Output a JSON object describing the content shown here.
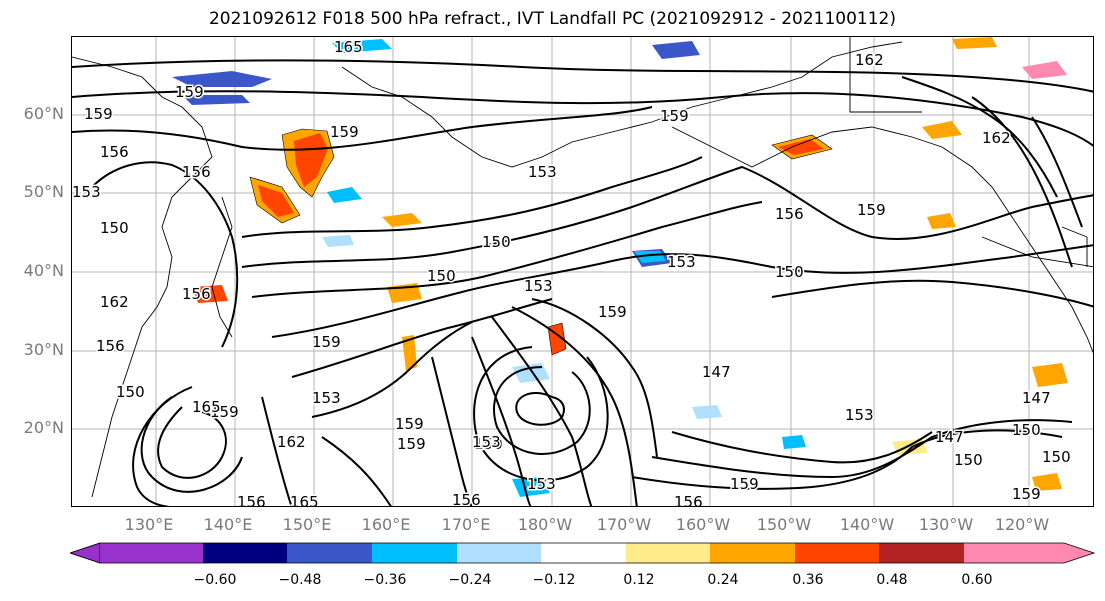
{
  "title": "2021092612 F018 500 hPa refract., IVT Landfall PC (2021092912 - 2021100112)",
  "lat_labels": [
    "60°N",
    "50°N",
    "40°N",
    "30°N",
    "20°N"
  ],
  "lon_labels": [
    "130°E",
    "140°E",
    "150°E",
    "160°E",
    "170°E",
    "180°W",
    "170°W",
    "160°W",
    "150°W",
    "140°W",
    "130°W",
    "120°W"
  ],
  "colorbar": {
    "colors": [
      "#9932cc",
      "#000080",
      "#3a56c8",
      "#00bfff",
      "#b0e0ff",
      "#ffffff",
      "#ffeb8a",
      "#ffa500",
      "#ff4500",
      "#b22222",
      "#ff88b0"
    ],
    "tick_labels": [
      "−0.60",
      "−0.48",
      "−0.36",
      "−0.24",
      "−0.12",
      "0.12",
      "0.24",
      "0.36",
      "0.48",
      "0.60"
    ]
  },
  "contour_labels": [
    "165",
    "159",
    "162",
    "159",
    "156",
    "159",
    "150",
    "159",
    "156",
    "153",
    "150",
    "153",
    "150",
    "156",
    "159",
    "153",
    "162",
    "159",
    "153",
    "150",
    "156",
    "162",
    "156",
    "159",
    "159",
    "147",
    "165",
    "153",
    "150",
    "153",
    "150",
    "159",
    "153",
    "147",
    "150",
    "147",
    "150",
    "159",
    "156",
    "159",
    "150",
    "159",
    "156",
    "153",
    "162",
    "165",
    "156"
  ],
  "colors": {
    "contour": "#000000",
    "frame": "#000000",
    "axis_label": "#7a7a7a"
  }
}
